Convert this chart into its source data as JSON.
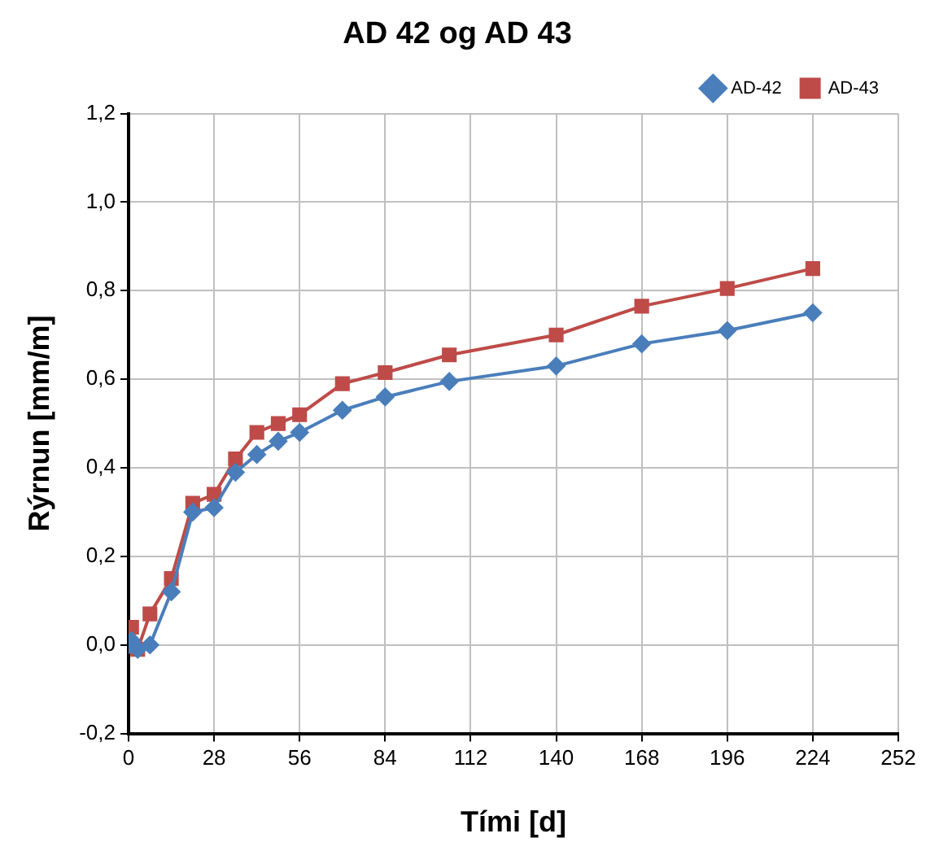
{
  "chart_data": {
    "type": "line",
    "title": "AD 42 og AD 43",
    "xlabel": "Tími [d]",
    "ylabel": "Rýrnun [mm/m]",
    "x": [
      0,
      1,
      3,
      7,
      14,
      21,
      28,
      35,
      42,
      49,
      56,
      70,
      84,
      105,
      140,
      168,
      196,
      224
    ],
    "series": [
      {
        "name": "AD-42",
        "color": "#4a7ebb",
        "marker": "diamond",
        "values": [
          0,
          0.01,
          -0.01,
          0.0,
          0.12,
          0.3,
          0.31,
          0.39,
          0.43,
          0.46,
          0.48,
          0.53,
          0.56,
          0.595,
          0.63,
          0.68,
          0.71,
          0.75
        ]
      },
      {
        "name": "AD-43",
        "color": "#be4b48",
        "marker": "square",
        "values": [
          0,
          0.04,
          -0.01,
          0.07,
          0.15,
          0.32,
          0.34,
          0.42,
          0.48,
          0.5,
          0.52,
          0.59,
          0.615,
          0.655,
          0.7,
          0.765,
          0.805,
          0.85
        ]
      }
    ],
    "xlim": [
      0,
      252
    ],
    "xticks": [
      0,
      28,
      56,
      84,
      112,
      140,
      168,
      196,
      224,
      252
    ],
    "ylim": [
      -0.2,
      1.2
    ],
    "yticks": [
      {
        "value": -0.2,
        "label": "-0,2"
      },
      {
        "value": 0,
        "label": "0,0"
      },
      {
        "value": 0.2,
        "label": "0,2"
      },
      {
        "value": 0.4,
        "label": "0,4"
      },
      {
        "value": 0.6,
        "label": "0,6"
      },
      {
        "value": 0.8,
        "label": "0,8"
      },
      {
        "value": 1.0,
        "label": "1,0"
      },
      {
        "value": 1.2,
        "label": "1,2"
      }
    ],
    "grid": true,
    "legend": "top right",
    "line_style": "solid"
  }
}
